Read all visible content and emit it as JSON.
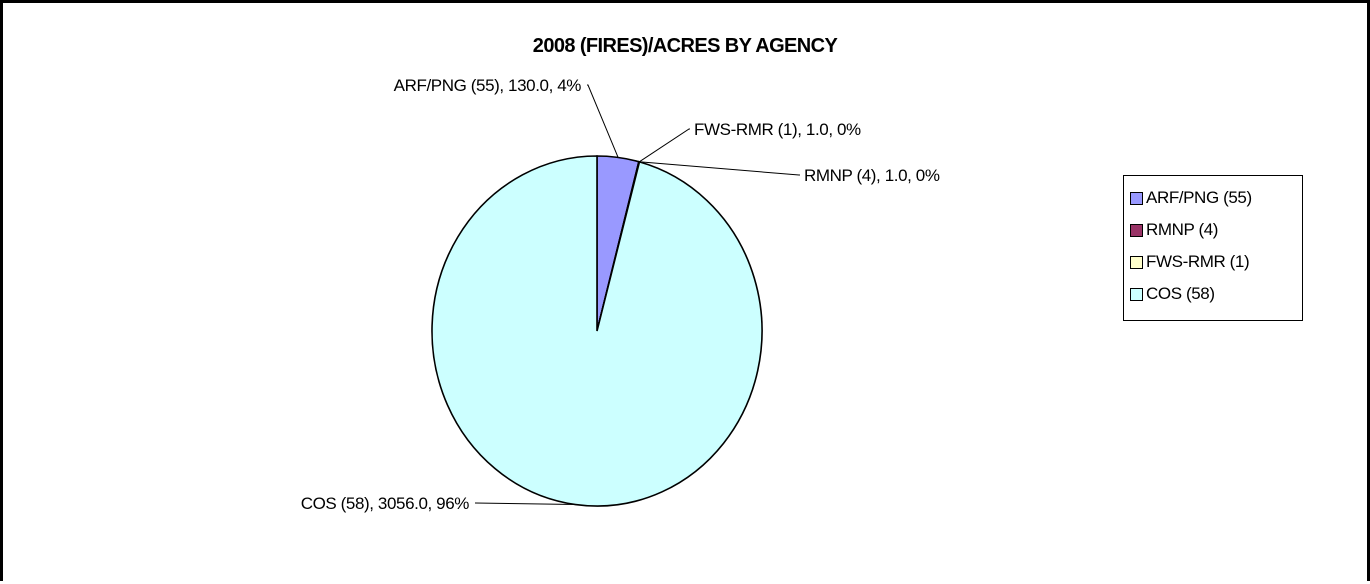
{
  "chart_data": {
    "type": "pie",
    "title": "2008 (FIRES)/ACRES BY AGENCY",
    "slices": [
      {
        "label": "ARF/PNG (55)",
        "value": 130.0,
        "value_text": "130.0",
        "percent_text": "4%",
        "color": "#9999ff"
      },
      {
        "label": "RMNP (4)",
        "value": 1.0,
        "value_text": "1.0",
        "percent_text": "0%",
        "color": "#993366"
      },
      {
        "label": "FWS-RMR (1)",
        "value": 1.0,
        "value_text": "1.0",
        "percent_text": "0%",
        "color": "#ffffcc"
      },
      {
        "label": "COS (58)",
        "value": 3056.0,
        "value_text": "3056.0",
        "percent_text": "96%",
        "color": "#ccffff"
      }
    ],
    "legend_position": "right"
  }
}
